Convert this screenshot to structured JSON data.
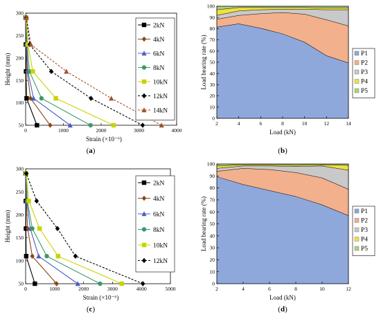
{
  "chart_data": [
    {
      "caption": "(a)",
      "type": "line",
      "xlabel": "Strain (×10⁻⁶)",
      "ylabel": "Height (mm)",
      "xlim": [
        0,
        4000
      ],
      "ylim": [
        50,
        300
      ],
      "xticks": [
        "0",
        "1000",
        "2000",
        "3000",
        "4000"
      ],
      "yticks": [
        "50",
        "100",
        "150",
        "200",
        "250",
        "300"
      ],
      "legend_position": "top-right",
      "heights": [
        50,
        110,
        170,
        230,
        290
      ],
      "series": [
        {
          "name": "2kN",
          "color": "#000000",
          "marker": "square",
          "dashed": false,
          "x": [
            300,
            25,
            10,
            5,
            0
          ]
        },
        {
          "name": "4kN",
          "color": "#8B4513",
          "marker": "diamond",
          "dashed": false,
          "x": [
            650,
            130,
            40,
            15,
            5
          ]
        },
        {
          "name": "6kN",
          "color": "#4a5fc1",
          "marker": "triangle",
          "dashed": false,
          "x": [
            1180,
            210,
            60,
            25,
            10
          ]
        },
        {
          "name": "8kN",
          "color": "#3a9a6a",
          "marker": "circle",
          "dashed": false,
          "x": [
            1720,
            420,
            100,
            40,
            10
          ]
        },
        {
          "name": "10kN",
          "color": "#c8d400",
          "marker": "square",
          "dashed": false,
          "x": [
            2330,
            800,
            190,
            60,
            15
          ]
        },
        {
          "name": "12kN",
          "color": "#000000",
          "marker": "diamond",
          "dashed": true,
          "x": [
            3100,
            1730,
            680,
            110,
            20
          ]
        },
        {
          "name": "14kN",
          "color": "#a0522d",
          "marker": "triangle",
          "dashed": true,
          "x": [
            3600,
            2270,
            1080,
            140,
            25
          ]
        }
      ]
    },
    {
      "caption": "(b)",
      "type": "area",
      "xlabel": "Load (kN)",
      "ylabel": "Load bearing rate (%)",
      "xlim": [
        2,
        14
      ],
      "ylim": [
        0,
        100
      ],
      "xticks": [
        "2",
        "4",
        "6",
        "8",
        "10",
        "12",
        "14"
      ],
      "yticks": [
        "0",
        "10",
        "20",
        "30",
        "40",
        "50",
        "60",
        "70",
        "80",
        "90",
        "100"
      ],
      "legend_position": "right",
      "x": [
        2,
        4,
        6,
        8,
        10,
        12,
        14
      ],
      "series": [
        {
          "name": "P1",
          "color": "#8fa8dc",
          "values": [
            81.5,
            84.5,
            80.5,
            75.5,
            68,
            56,
            49.5
          ]
        },
        {
          "name": "P2",
          "color": "#f2b08c",
          "values": [
            7,
            7.5,
            13,
            19,
            25,
            32,
            33
          ]
        },
        {
          "name": "P3",
          "color": "#c9c9c9",
          "values": [
            3.5,
            4,
            3.5,
            3,
            4.5,
            9,
            14.5
          ]
        },
        {
          "name": "P4",
          "color": "#f0e040",
          "values": [
            5,
            3,
            2,
            1.5,
            1.5,
            1.5,
            1.5
          ]
        },
        {
          "name": "P5",
          "color": "#b0d080",
          "values": [
            3,
            1,
            1,
            1,
            1,
            1.5,
            1.5
          ]
        }
      ]
    },
    {
      "caption": "(c)",
      "type": "line",
      "xlabel": "Strain (×10⁻⁶)",
      "ylabel": "Height (mm)",
      "xlim": [
        0,
        5000
      ],
      "ylim": [
        50,
        300
      ],
      "xticks": [
        "0",
        "1000",
        "2000",
        "3000",
        "4000",
        "5000"
      ],
      "yticks": [
        "50",
        "100",
        "150",
        "200",
        "250",
        "300"
      ],
      "legend_position": "top-right",
      "heights": [
        50,
        110,
        170,
        230,
        290
      ],
      "series": [
        {
          "name": "2kN",
          "color": "#000000",
          "marker": "square",
          "dashed": false,
          "x": [
            320,
            20,
            10,
            5,
            0
          ]
        },
        {
          "name": "4kN",
          "color": "#8B4513",
          "marker": "diamond",
          "dashed": false,
          "x": [
            1070,
            230,
            70,
            25,
            5
          ]
        },
        {
          "name": "6kN",
          "color": "#4a5fc1",
          "marker": "triangle",
          "dashed": false,
          "x": [
            1800,
            450,
            160,
            40,
            10
          ]
        },
        {
          "name": "8kN",
          "color": "#3a9a6a",
          "marker": "circle",
          "dashed": false,
          "x": [
            2570,
            730,
            230,
            60,
            15
          ]
        },
        {
          "name": "10kN",
          "color": "#c8d400",
          "marker": "square",
          "dashed": false,
          "x": [
            3320,
            1120,
            480,
            110,
            20
          ]
        },
        {
          "name": "12kN",
          "color": "#000000",
          "marker": "diamond",
          "dashed": true,
          "x": [
            4050,
            1720,
            1100,
            380,
            25
          ]
        }
      ]
    },
    {
      "caption": "(d)",
      "type": "area",
      "xlabel": "Load (kN)",
      "ylabel": "Load bearing rate (%)",
      "xlim": [
        2,
        12
      ],
      "ylim": [
        0,
        100
      ],
      "xticks": [
        "2",
        "4",
        "6",
        "8",
        "10",
        "12"
      ],
      "yticks": [
        "0",
        "10",
        "20",
        "30",
        "40",
        "50",
        "60",
        "70",
        "80",
        "90",
        "100"
      ],
      "legend_position": "right",
      "x": [
        2,
        4,
        6,
        8,
        10,
        12
      ],
      "series": [
        {
          "name": "P1",
          "color": "#8fa8dc",
          "values": [
            89.5,
            83,
            78,
            73,
            66,
            57
          ]
        },
        {
          "name": "P2",
          "color": "#f2b08c",
          "values": [
            4.5,
            13.5,
            17.5,
            20,
            22.5,
            22
          ]
        },
        {
          "name": "P3",
          "color": "#c9c9c9",
          "values": [
            2.5,
            2,
            3,
            5,
            10,
            16
          ]
        },
        {
          "name": "P4",
          "color": "#f0e040",
          "values": [
            2,
            1,
            1,
            1,
            1,
            4
          ]
        },
        {
          "name": "P5",
          "color": "#b0d080",
          "values": [
            1.5,
            0.5,
            0.5,
            1,
            0.5,
            1
          ]
        }
      ]
    }
  ]
}
